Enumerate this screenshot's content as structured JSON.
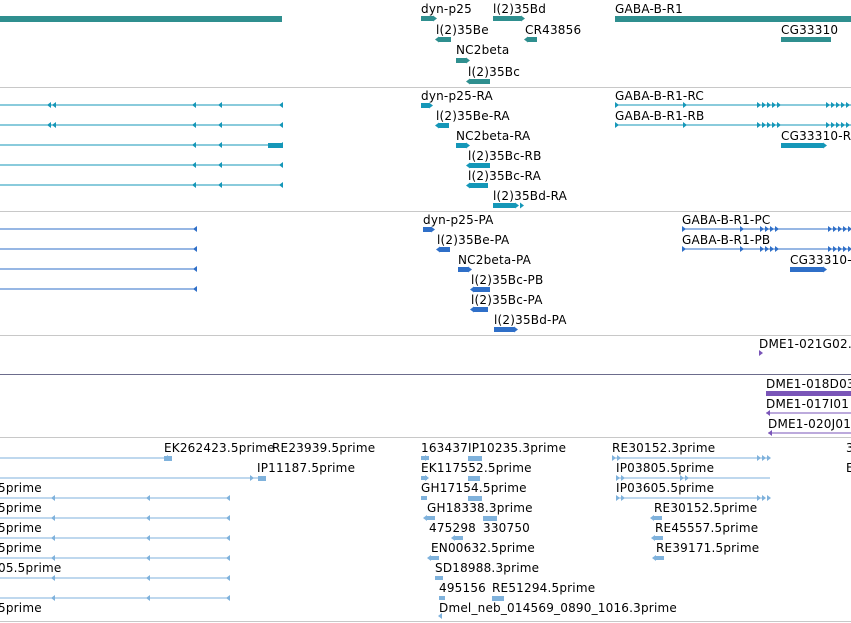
{
  "tracks": {
    "genes": {
      "color": "#2f8f8f",
      "labels": [
        "dyn-p25",
        "l(2)35Bd",
        "GABA-B-R1",
        "l(2)35Be",
        "CR43856",
        "CG33310",
        "NC2beta",
        "l(2)35Bc"
      ]
    },
    "transcripts": {
      "color": "#1597b8",
      "labels": [
        "dyn-p25-RA",
        "GABA-B-R1-RC",
        "l(2)35Be-RA",
        "GABA-B-R1-RB",
        "NC2beta-RA",
        "CG33310-R",
        "l(2)35Bc-RB",
        "l(2)35Bc-RA",
        "l(2)35Bd-RA"
      ]
    },
    "proteins": {
      "color": "#2f6fc8",
      "labels": [
        "dyn-p25-PA",
        "GABA-B-R1-PC",
        "l(2)35Be-PA",
        "GABA-B-R1-PB",
        "NC2beta-PA",
        "CG33310-",
        "l(2)35Bc-PB",
        "l(2)35Bc-PA",
        "l(2)35Bd-PA"
      ]
    },
    "dme_single": {
      "color": "#7a55b8",
      "labels": [
        "DME1-021G02."
      ]
    },
    "dme_multi": {
      "color": "#7a55b8",
      "labels": [
        "DME1-018D03",
        "DME1-017I01",
        "DME1-020J01"
      ]
    },
    "ests": {
      "color": "#7fb2dc",
      "labels": [
        "EK262423.5prime",
        "RE23939.5prime",
        "163437",
        "IP10235.3prime",
        "RE30152.3prime",
        "3",
        "IP11187.5prime",
        "EK117552.5prime",
        "IP03805.5prime",
        "E",
        "5prime",
        "GH17154.5prime",
        "IP03605.5prime",
        "5prime",
        "GH18338.3prime",
        "RE30152.5prime",
        "5prime",
        "475298",
        "330750",
        "RE45557.5prime",
        "5prime",
        "EN00632.5prime",
        "RE39171.5prime",
        "05.5prime",
        "SD18988.3prime",
        "495156",
        "RE51294.5prime",
        "5prime",
        "Dmel_neb_014569_0890_1016.3prime"
      ]
    }
  }
}
